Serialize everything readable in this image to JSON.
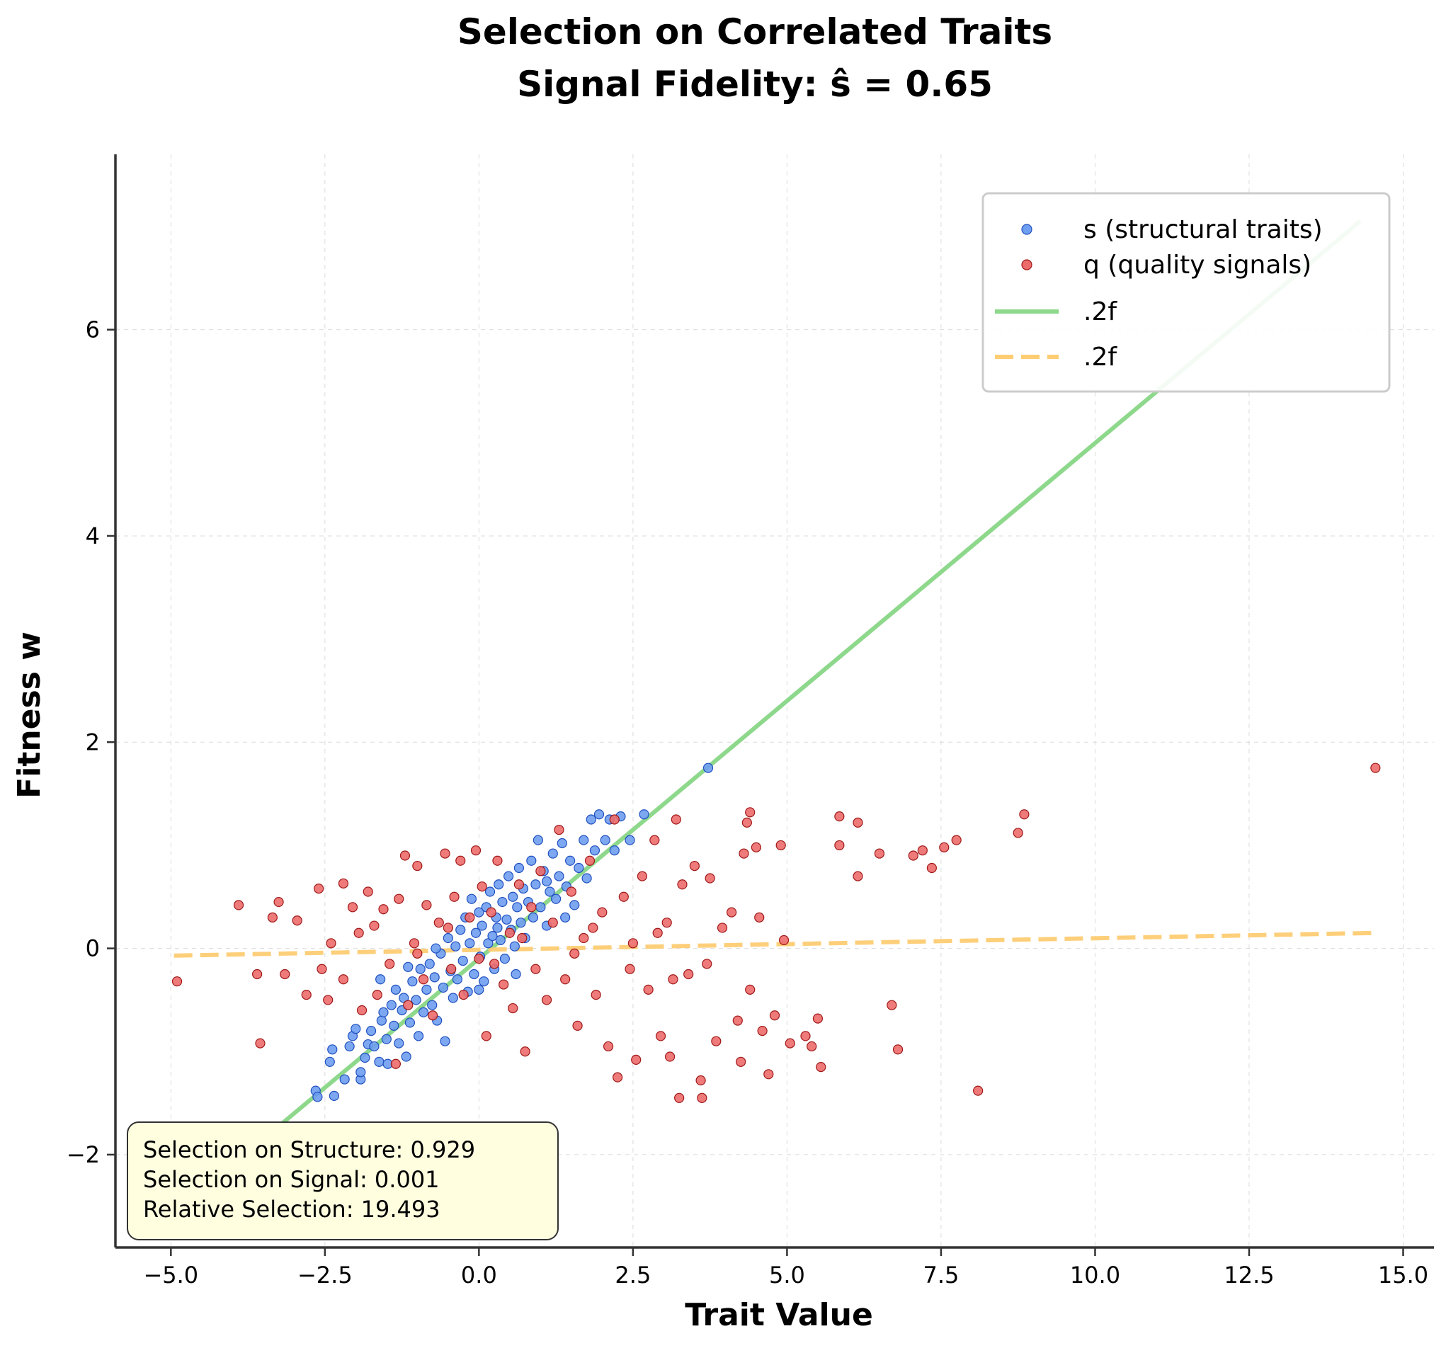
{
  "chart_data": {
    "type": "scatter",
    "title": "Selection on Correlated Traits",
    "subtitle": "Signal Fidelity: ŝ = 0.65",
    "xlabel": "Trait Value",
    "ylabel": "Fitness w",
    "xlim": [
      -5.9,
      15.5
    ],
    "ylim": [
      -2.9,
      7.7
    ],
    "xticks": [
      -5.0,
      -2.5,
      0.0,
      2.5,
      5.0,
      7.5,
      10.0,
      12.5,
      15.0
    ],
    "xtick_labels": [
      "−5.0",
      "−2.5",
      "0.0",
      "2.5",
      "5.0",
      "7.5",
      "10.0",
      "12.5",
      "15.0"
    ],
    "yticks": [
      -2,
      0,
      2,
      4,
      6
    ],
    "ytick_labels": [
      "−2",
      "0",
      "2",
      "4",
      "6"
    ],
    "grid": true,
    "legend_position": "top-right",
    "series": [
      {
        "name": "s (structural traits)",
        "kind": "scatter",
        "color": "#6f9ff0",
        "edge_color": "#1f4fbf",
        "points": [
          [
            -2.65,
            -1.38
          ],
          [
            -2.62,
            -1.44
          ],
          [
            -2.35,
            -1.43
          ],
          [
            -2.42,
            -1.1
          ],
          [
            -2.38,
            -0.98
          ],
          [
            -2.18,
            -1.27
          ],
          [
            -2.1,
            -0.95
          ],
          [
            -2.05,
            -0.85
          ],
          [
            -1.92,
            -1.27
          ],
          [
            -1.92,
            -1.2
          ],
          [
            -1.85,
            -1.06
          ],
          [
            -1.8,
            -0.93
          ],
          [
            -1.75,
            -0.8
          ],
          [
            -1.7,
            -0.95
          ],
          [
            -1.62,
            -1.1
          ],
          [
            -1.58,
            -0.7
          ],
          [
            -1.55,
            -0.62
          ],
          [
            -1.5,
            -0.88
          ],
          [
            -1.48,
            -1.12
          ],
          [
            -1.42,
            -0.55
          ],
          [
            -1.38,
            -0.75
          ],
          [
            -1.35,
            -0.4
          ],
          [
            -1.3,
            -0.92
          ],
          [
            -1.25,
            -0.6
          ],
          [
            -1.22,
            -0.48
          ],
          [
            -1.18,
            -1.05
          ],
          [
            -1.12,
            -0.72
          ],
          [
            -1.08,
            -0.32
          ],
          [
            -1.02,
            -0.5
          ],
          [
            -0.98,
            -0.85
          ],
          [
            -0.95,
            -0.2
          ],
          [
            -0.9,
            -0.62
          ],
          [
            -0.85,
            -0.4
          ],
          [
            -0.8,
            -0.15
          ],
          [
            -0.76,
            -0.55
          ],
          [
            -0.72,
            -0.28
          ],
          [
            -0.68,
            -0.7
          ],
          [
            -0.62,
            -0.05
          ],
          [
            -0.58,
            -0.38
          ],
          [
            -0.55,
            -0.9
          ],
          [
            -0.5,
            0.1
          ],
          [
            -0.46,
            -0.22
          ],
          [
            -0.42,
            -0.48
          ],
          [
            -0.38,
            0.02
          ],
          [
            -0.35,
            -0.3
          ],
          [
            -0.3,
            0.18
          ],
          [
            -0.26,
            -0.12
          ],
          [
            -0.22,
            0.3
          ],
          [
            -0.18,
            -0.42
          ],
          [
            -0.15,
            0.05
          ],
          [
            -0.12,
            0.48
          ],
          [
            -0.08,
            -0.25
          ],
          [
            -0.05,
            0.15
          ],
          [
            0.0,
            0.35
          ],
          [
            0.02,
            -0.08
          ],
          [
            0.05,
            0.22
          ],
          [
            0.08,
            -0.32
          ],
          [
            0.12,
            0.4
          ],
          [
            0.15,
            0.05
          ],
          [
            0.18,
            0.55
          ],
          [
            0.22,
            0.12
          ],
          [
            0.25,
            -0.2
          ],
          [
            0.28,
            0.3
          ],
          [
            0.32,
            0.62
          ],
          [
            0.35,
            0.08
          ],
          [
            0.38,
            0.45
          ],
          [
            0.42,
            -0.1
          ],
          [
            0.45,
            0.28
          ],
          [
            0.48,
            0.7
          ],
          [
            0.52,
            0.18
          ],
          [
            0.55,
            0.5
          ],
          [
            0.58,
            0.02
          ],
          [
            0.62,
            0.4
          ],
          [
            0.65,
            0.78
          ],
          [
            0.68,
            0.25
          ],
          [
            0.72,
            0.58
          ],
          [
            0.75,
            0.1
          ],
          [
            0.8,
            0.45
          ],
          [
            0.85,
            0.85
          ],
          [
            0.88,
            0.3
          ],
          [
            0.92,
            0.62
          ],
          [
            0.96,
            1.05
          ],
          [
            1.0,
            0.4
          ],
          [
            1.05,
            0.75
          ],
          [
            1.1,
            0.22
          ],
          [
            1.15,
            0.55
          ],
          [
            1.2,
            0.92
          ],
          [
            1.25,
            0.48
          ],
          [
            1.3,
            0.7
          ],
          [
            1.35,
            1.02
          ],
          [
            1.42,
            0.6
          ],
          [
            1.48,
            0.85
          ],
          [
            1.55,
            0.42
          ],
          [
            1.62,
            0.78
          ],
          [
            1.7,
            1.05
          ],
          [
            1.75,
            0.68
          ],
          [
            1.82,
            1.25
          ],
          [
            1.88,
            0.95
          ],
          [
            1.95,
            1.3
          ],
          [
            2.05,
            1.05
          ],
          [
            2.12,
            1.25
          ],
          [
            2.2,
            0.95
          ],
          [
            2.3,
            1.28
          ],
          [
            2.45,
            1.05
          ],
          [
            2.68,
            1.3
          ],
          [
            3.72,
            1.75
          ],
          [
            -1.6,
            -0.3
          ],
          [
            -0.7,
            0.0
          ],
          [
            0.3,
            0.2
          ],
          [
            1.1,
            0.65
          ],
          [
            -2.0,
            -0.78
          ],
          [
            -1.15,
            -0.18
          ],
          [
            0.0,
            -0.4
          ],
          [
            0.6,
            -0.25
          ],
          [
            1.4,
            0.3
          ]
        ]
      },
      {
        "name": "q (quality signals)",
        "kind": "scatter",
        "color": "#ec6b6b",
        "edge_color": "#a01818",
        "points": [
          [
            -4.9,
            -0.32
          ],
          [
            -3.9,
            0.42
          ],
          [
            -3.6,
            -0.25
          ],
          [
            -3.55,
            -0.92
          ],
          [
            -3.35,
            0.3
          ],
          [
            -3.25,
            0.45
          ],
          [
            -3.15,
            -0.25
          ],
          [
            -2.95,
            0.27
          ],
          [
            -2.8,
            -0.45
          ],
          [
            -2.6,
            0.58
          ],
          [
            -2.55,
            -0.2
          ],
          [
            -2.45,
            -0.5
          ],
          [
            -2.4,
            0.05
          ],
          [
            -2.2,
            -0.3
          ],
          [
            -2.2,
            0.63
          ],
          [
            -2.05,
            0.4
          ],
          [
            -1.95,
            0.15
          ],
          [
            -1.9,
            -0.6
          ],
          [
            -1.8,
            0.55
          ],
          [
            -1.7,
            0.22
          ],
          [
            -1.65,
            -0.45
          ],
          [
            -1.55,
            0.38
          ],
          [
            -1.45,
            -0.15
          ],
          [
            -1.35,
            -1.12
          ],
          [
            -1.3,
            0.48
          ],
          [
            -1.2,
            0.9
          ],
          [
            -1.15,
            -0.55
          ],
          [
            -1.05,
            0.05
          ],
          [
            -1.0,
            0.8
          ],
          [
            -0.9,
            -0.3
          ],
          [
            -0.85,
            0.42
          ],
          [
            -0.75,
            -0.65
          ],
          [
            -0.65,
            0.25
          ],
          [
            -0.55,
            0.92
          ],
          [
            -0.45,
            -0.2
          ],
          [
            -0.4,
            0.5
          ],
          [
            -0.3,
            0.85
          ],
          [
            -0.25,
            -0.45
          ],
          [
            -0.15,
            0.3
          ],
          [
            -0.05,
            0.95
          ],
          [
            0.0,
            -0.1
          ],
          [
            0.05,
            0.6
          ],
          [
            0.12,
            -0.85
          ],
          [
            0.2,
            0.35
          ],
          [
            0.3,
            0.85
          ],
          [
            0.4,
            -0.35
          ],
          [
            0.5,
            0.15
          ],
          [
            0.55,
            -0.58
          ],
          [
            0.65,
            0.62
          ],
          [
            0.75,
            -1.0
          ],
          [
            0.85,
            0.4
          ],
          [
            0.92,
            -0.2
          ],
          [
            1.0,
            0.75
          ],
          [
            1.1,
            -0.5
          ],
          [
            1.2,
            0.25
          ],
          [
            1.3,
            1.15
          ],
          [
            1.4,
            -0.3
          ],
          [
            1.5,
            0.55
          ],
          [
            1.6,
            -0.75
          ],
          [
            1.7,
            0.1
          ],
          [
            1.8,
            0.85
          ],
          [
            1.9,
            -0.45
          ],
          [
            2.0,
            0.35
          ],
          [
            2.1,
            -0.95
          ],
          [
            2.2,
            1.25
          ],
          [
            2.25,
            -1.25
          ],
          [
            2.35,
            0.5
          ],
          [
            2.45,
            -0.2
          ],
          [
            2.55,
            -1.08
          ],
          [
            2.65,
            0.7
          ],
          [
            2.75,
            -0.4
          ],
          [
            2.85,
            1.05
          ],
          [
            2.95,
            -0.85
          ],
          [
            3.05,
            0.25
          ],
          [
            3.1,
            -1.05
          ],
          [
            3.2,
            1.25
          ],
          [
            3.25,
            -1.45
          ],
          [
            3.3,
            0.62
          ],
          [
            3.4,
            -0.25
          ],
          [
            3.5,
            0.8
          ],
          [
            3.6,
            -1.28
          ],
          [
            3.62,
            -1.45
          ],
          [
            3.7,
            -0.15
          ],
          [
            3.75,
            0.68
          ],
          [
            3.85,
            -0.9
          ],
          [
            3.95,
            0.2
          ],
          [
            4.1,
            0.35
          ],
          [
            4.2,
            -0.7
          ],
          [
            4.25,
            -1.1
          ],
          [
            4.3,
            0.92
          ],
          [
            4.35,
            1.22
          ],
          [
            4.4,
            -0.4
          ],
          [
            4.4,
            1.32
          ],
          [
            4.5,
            0.98
          ],
          [
            4.55,
            0.3
          ],
          [
            4.6,
            -0.8
          ],
          [
            4.7,
            -1.22
          ],
          [
            4.8,
            -0.65
          ],
          [
            4.9,
            1.0
          ],
          [
            4.95,
            0.08
          ],
          [
            5.05,
            -0.92
          ],
          [
            5.3,
            -0.85
          ],
          [
            5.4,
            -0.95
          ],
          [
            5.5,
            -0.68
          ],
          [
            5.55,
            -1.15
          ],
          [
            5.85,
            1.28
          ],
          [
            5.85,
            1.0
          ],
          [
            6.15,
            0.7
          ],
          [
            6.15,
            1.22
          ],
          [
            6.5,
            0.92
          ],
          [
            6.7,
            -0.55
          ],
          [
            6.8,
            -0.98
          ],
          [
            7.05,
            0.9
          ],
          [
            7.2,
            0.95
          ],
          [
            7.35,
            0.78
          ],
          [
            7.55,
            0.98
          ],
          [
            7.75,
            1.05
          ],
          [
            8.1,
            -1.38
          ],
          [
            8.75,
            1.12
          ],
          [
            8.85,
            1.3
          ],
          [
            14.55,
            1.75
          ],
          [
            -1.0,
            -0.05
          ],
          [
            0.7,
            0.1
          ],
          [
            1.55,
            -0.05
          ],
          [
            2.5,
            0.05
          ],
          [
            -0.5,
            0.2
          ],
          [
            0.25,
            -0.15
          ],
          [
            1.85,
            0.2
          ],
          [
            2.9,
            0.15
          ],
          [
            3.15,
            -0.3
          ]
        ]
      },
      {
        "name": ".2f",
        "kind": "line",
        "color": "#8ed88c",
        "style": "solid",
        "x": [
          -3.7,
          14.3
        ],
        "y": [
          -1.95,
          7.05
        ]
      },
      {
        "name": ".2f",
        "kind": "line",
        "color": "#fdcd73",
        "style": "dashed",
        "x": [
          -4.95,
          14.55
        ],
        "y": [
          -0.07,
          0.15
        ]
      }
    ],
    "annotations": [
      "Selection on Structure: 0.929",
      "Selection on Signal: 0.001",
      "Relative Selection: 19.493"
    ]
  }
}
